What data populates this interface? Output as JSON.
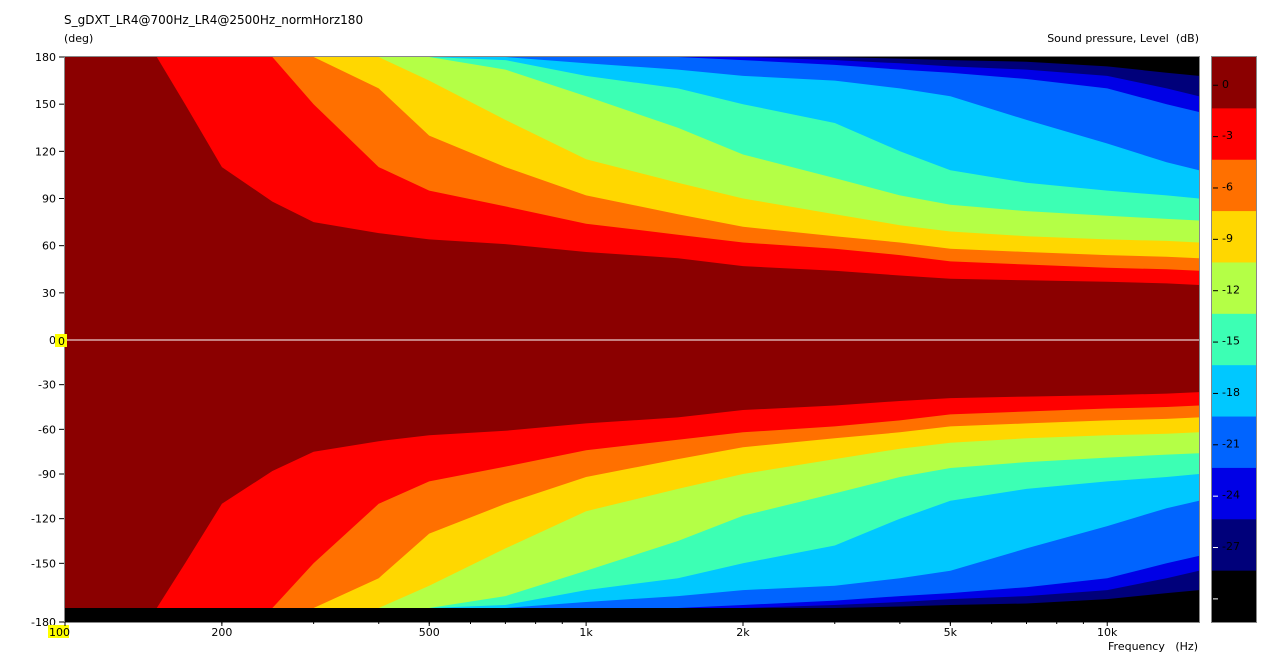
{
  "chart_data": {
    "type": "heatmap",
    "title": "S_gDXT_LR4@700Hz_LR4@2500Hz_normHorz180",
    "ylabel": "(deg)",
    "xlabel": "Frequency (Hz)",
    "xlabel_text": "Frequency",
    "xlabel_unit": "(Hz)",
    "colorbar_label": "Sound pressure, Level (dB)",
    "colorbar_label_text": "Sound pressure, Level",
    "colorbar_label_unit": "(dB)",
    "x_scale": "log",
    "xlim": [
      100,
      15000
    ],
    "ylim": [
      -180,
      180
    ],
    "x_ticks": [
      {
        "value": 100,
        "label": "100",
        "highlighted": true
      },
      {
        "value": 200,
        "label": "200"
      },
      {
        "value": 500,
        "label": "500"
      },
      {
        "value": 1000,
        "label": "1k"
      },
      {
        "value": 2000,
        "label": "2k"
      },
      {
        "value": 5000,
        "label": "5k"
      },
      {
        "value": 10000,
        "label": "10k"
      }
    ],
    "y_ticks": [
      180,
      150,
      120,
      90,
      60,
      30,
      0,
      -30,
      -60,
      -90,
      -120,
      -150,
      -180
    ],
    "y_tick_labels": [
      "180",
      "150",
      "120",
      "90",
      "60",
      "30",
      "0",
      "-30",
      "-60",
      "-90",
      "-120",
      "-150",
      "-180"
    ],
    "zero_marker_label": "0",
    "levels": [
      0,
      -3,
      -6,
      -9,
      -12,
      -15,
      -18,
      -21,
      -24,
      -27,
      -30
    ],
    "level_labels": [
      "0",
      "-3",
      "-6",
      "-9",
      "-12",
      "-15",
      "-18",
      "-21",
      "-24",
      "-27",
      "-30"
    ],
    "level_colors": [
      "#8b0000",
      "#ff0000",
      "#ff7000",
      "#ffd700",
      "#b4ff46",
      "#3cffb4",
      "#00c8ff",
      "#0064ff",
      "#0000e6",
      "#00007a",
      "#000000"
    ],
    "contours_frequency_hz": [
      100,
      150,
      170,
      200,
      250,
      300,
      400,
      500,
      700,
      1000,
      1500,
      2000,
      3000,
      4000,
      5000,
      7000,
      10000,
      13000,
      15000
    ],
    "contours_angle_deg": [
      {
        "level": -3,
        "angle": [
          180,
          180,
          150,
          110,
          88,
          75,
          68,
          64,
          61,
          56,
          52,
          47,
          44,
          41,
          39,
          38,
          37,
          36,
          35
        ]
      },
      {
        "level": -6,
        "angle": [
          180,
          180,
          180,
          180,
          180,
          150,
          110,
          95,
          85,
          74,
          67,
          62,
          58,
          54,
          50,
          48,
          46,
          45,
          44
        ]
      },
      {
        "level": -9,
        "angle": [
          180,
          180,
          180,
          180,
          180,
          180,
          160,
          130,
          110,
          92,
          80,
          72,
          66,
          62,
          58,
          56,
          54,
          53,
          52
        ]
      },
      {
        "level": -12,
        "angle": [
          180,
          180,
          180,
          180,
          180,
          180,
          180,
          165,
          140,
          115,
          100,
          90,
          80,
          73,
          69,
          66,
          64,
          63,
          62
        ]
      },
      {
        "level": -15,
        "angle": [
          180,
          180,
          180,
          180,
          180,
          180,
          180,
          180,
          172,
          155,
          135,
          118,
          103,
          92,
          86,
          82,
          79,
          77,
          76
        ]
      },
      {
        "level": -18,
        "angle": [
          180,
          180,
          180,
          180,
          180,
          180,
          180,
          180,
          178,
          168,
          160,
          150,
          138,
          120,
          108,
          100,
          95,
          92,
          90
        ]
      },
      {
        "level": -21,
        "angle": [
          180,
          180,
          180,
          180,
          180,
          180,
          180,
          180,
          180,
          176,
          172,
          168,
          165,
          160,
          155,
          140,
          125,
          113,
          108
        ]
      },
      {
        "level": -24,
        "angle": [
          180,
          180,
          180,
          180,
          180,
          180,
          180,
          180,
          180,
          180,
          180,
          178,
          175,
          172,
          170,
          166,
          160,
          150,
          145
        ]
      },
      {
        "level": -27,
        "angle": [
          180,
          180,
          180,
          180,
          180,
          180,
          180,
          180,
          180,
          180,
          180,
          180,
          178,
          176,
          174,
          172,
          168,
          160,
          155
        ]
      },
      {
        "level": -30,
        "angle": [
          180,
          180,
          180,
          180,
          180,
          180,
          180,
          180,
          180,
          180,
          180,
          180,
          180,
          179,
          178,
          177,
          174,
          170,
          168
        ]
      }
    ],
    "grid": false,
    "legend": "colorbar right"
  }
}
